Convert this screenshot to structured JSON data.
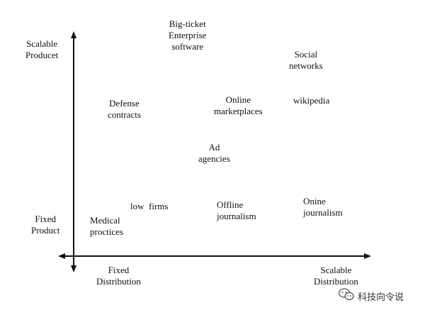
{
  "axes": {
    "y_top_label": "Scalable\nProducet",
    "y_bottom_label": "Fixed\nProduct",
    "x_left_label": "Fixed\nDistribution",
    "x_right_label": "Scalable\nDistribution"
  },
  "items": [
    {
      "id": "big-ticket-enterprise-software",
      "text": "Big-ticket\nEnterprise\nsoftware"
    },
    {
      "id": "social-networks",
      "text": "Social\nnetworks"
    },
    {
      "id": "defense-contracts",
      "text": "Defense\ncontracts"
    },
    {
      "id": "online-marketplaces",
      "text": "Online\nmarketplaces"
    },
    {
      "id": "wikipedia",
      "text": "wikipedia"
    },
    {
      "id": "ad-agencies",
      "text": "Ad\nagencies"
    },
    {
      "id": "low-firms",
      "text": "low  firms"
    },
    {
      "id": "offline-journalism",
      "text": "Offline\njournalism"
    },
    {
      "id": "onine-journalism",
      "text": "Onine\njournalism"
    },
    {
      "id": "medical-proctices",
      "text": "Medical\nproctices"
    }
  ],
  "watermark": {
    "text": "科技向令说",
    "icon": "wechat-icon",
    "color": "#333333"
  }
}
